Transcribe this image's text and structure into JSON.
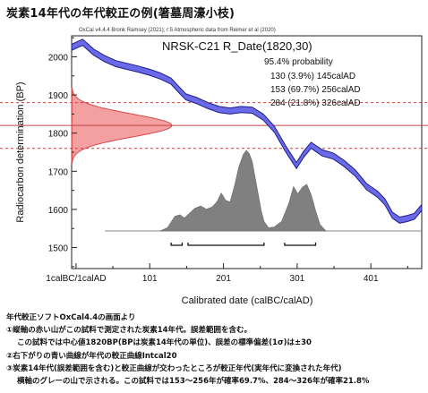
{
  "page_title": "炭素14年代の年代較正の例(箸墓周濠小枝)",
  "chart_data": {
    "type": "line",
    "header_credit": "OxCal v4.4.4 Bronk Ramsey (2021); r:5 Atmospheric data from Reimer et al (2020)",
    "sample_title": "NRSK-C21 R_Date(1820,30)",
    "probability_header": "95.4% probability",
    "ranges": [
      "130 (3.9%) 145calAD",
      "153 (69.7%) 256calAD",
      "284 (21.8%) 326calAD"
    ],
    "range_bars": [
      [
        130,
        145
      ],
      [
        153,
        256
      ],
      [
        284,
        326
      ]
    ],
    "xlabel": "Calibrated date (calBC/calAD)",
    "ylabel": "Radiocarbon determination (BP)",
    "x_ticks": [
      {
        "v": 1,
        "label": "1calBC/1calAD"
      },
      {
        "v": 101,
        "label": "101"
      },
      {
        "v": 201,
        "label": "201"
      },
      {
        "v": 301,
        "label": "301"
      },
      {
        "v": 401,
        "label": "401"
      }
    ],
    "y_ticks": [
      1500,
      1600,
      1700,
      1800,
      1900,
      2000
    ],
    "xlim": [
      -5,
      470
    ],
    "ylim": [
      1445,
      2055
    ],
    "measurement": {
      "bp": 1820,
      "sigma": 30
    },
    "calibration_curve": {
      "name": "IntCal20",
      "color": "#6a6ae6",
      "x": [
        -5,
        10,
        25,
        40,
        55,
        70,
        85,
        100,
        115,
        130,
        140,
        150,
        165,
        180,
        195,
        210,
        225,
        240,
        255,
        270,
        285,
        300,
        310,
        320,
        335,
        350,
        365,
        380,
        395,
        410,
        420,
        430,
        440,
        450,
        460,
        470
      ],
      "y": [
        2025,
        2038,
        2012,
        1995,
        1982,
        1975,
        1968,
        1960,
        1950,
        1936,
        1915,
        1895,
        1885,
        1872,
        1862,
        1858,
        1862,
        1860,
        1842,
        1810,
        1760,
        1715,
        1745,
        1768,
        1748,
        1740,
        1720,
        1695,
        1660,
        1640,
        1620,
        1585,
        1572,
        1576,
        1582,
        1605
      ],
      "sigma": 8
    },
    "posterior": {
      "color": "#808080",
      "x": [
        115,
        125,
        135,
        142,
        148,
        155,
        162,
        170,
        178,
        186,
        192,
        198,
        204,
        210,
        216,
        222,
        228,
        232,
        236,
        240,
        244,
        248,
        252,
        256,
        262,
        270,
        280,
        290,
        296,
        302,
        308,
        314,
        320,
        326,
        332,
        340
      ],
      "y": [
        0.0,
        0.04,
        0.18,
        0.2,
        0.16,
        0.22,
        0.28,
        0.31,
        0.27,
        0.3,
        0.36,
        0.47,
        0.38,
        0.36,
        0.56,
        0.8,
        0.95,
        1.0,
        0.96,
        0.86,
        0.66,
        0.46,
        0.26,
        0.12,
        0.04,
        0.05,
        0.12,
        0.35,
        0.55,
        0.46,
        0.54,
        0.58,
        0.45,
        0.25,
        0.08,
        0.0
      ]
    },
    "colors": {
      "gauss_fill": "#f4a0a0",
      "gauss_edge": "#d94848",
      "hline": "#c44040"
    },
    "grid": false
  },
  "notes": [
    "年代較正ソフトOxCal4.4の画面より",
    "①縦軸の赤い山がこの試料で測定された炭素14年代。誤差範囲を含む。",
    "この試料では中心値1820BP(BPは炭素14年代の単位)、誤差の標準偏差(1σ)は±30",
    "②右下がりの青い曲線が年代の較正曲線Intcal20",
    "③炭素14年代(誤差範囲を含む)と較正曲線が交わったところが較正年代(実年代に変換された年代)",
    "横軸のグレーの山で示される。この試料では153～256年が確率69.7%、284～326年が確率21.8%"
  ]
}
